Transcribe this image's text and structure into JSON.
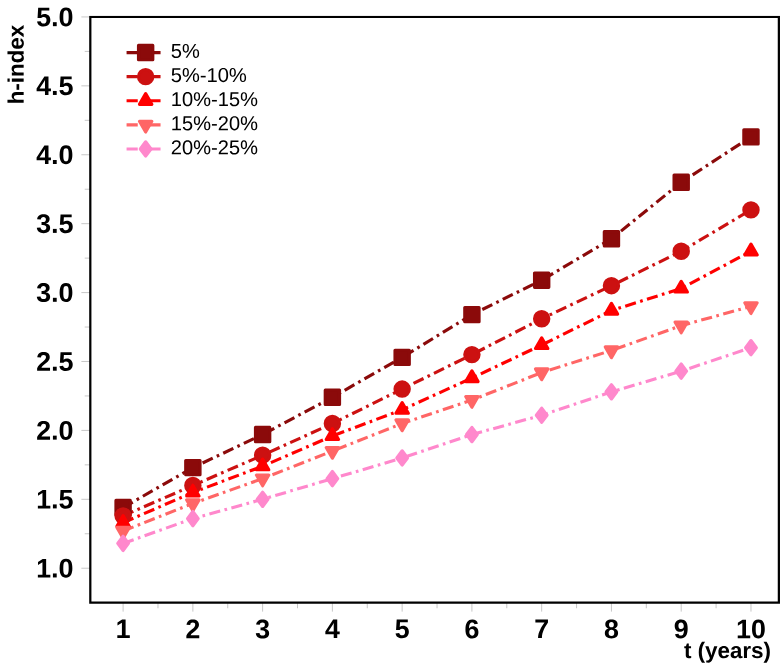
{
  "chart_data": {
    "type": "line",
    "xlabel": "t (years)",
    "ylabel": "h-index",
    "x": [
      1,
      2,
      3,
      4,
      5,
      6,
      7,
      8,
      9,
      10
    ],
    "xlim": [
      0.53,
      10.4
    ],
    "xticks": [
      1,
      2,
      3,
      4,
      5,
      6,
      7,
      8,
      9,
      10
    ],
    "ylim": [
      0.75,
      5.0
    ],
    "yticks": [
      {
        "value": 1.0,
        "label": "1.0"
      },
      {
        "value": 1.5,
        "label": "1.5"
      },
      {
        "value": 2.0,
        "label": "2.0"
      },
      {
        "value": 2.5,
        "label": "2.5"
      },
      {
        "value": 3.0,
        "label": "3.0"
      },
      {
        "value": 3.5,
        "label": "3.5"
      },
      {
        "value": 4.0,
        "label": "4.0"
      },
      {
        "value": 4.5,
        "label": "4.5"
      },
      {
        "value": 5.0,
        "label": "5.0"
      }
    ],
    "grid": false,
    "legend": "top left",
    "line_style": "dashed",
    "series": [
      {
        "name": "5%",
        "color": "#8b0a0a",
        "marker": "square",
        "values": [
          1.44,
          1.73,
          1.97,
          2.24,
          2.53,
          2.84,
          3.09,
          3.39,
          3.8,
          4.13
        ]
      },
      {
        "name": "5%-10%",
        "color": "#cc1111",
        "marker": "circle",
        "values": [
          1.38,
          1.6,
          1.82,
          2.05,
          2.3,
          2.55,
          2.81,
          3.05,
          3.3,
          3.6
        ]
      },
      {
        "name": "10%-15%",
        "color": "#ff0000",
        "marker": "triangle",
        "values": [
          1.33,
          1.55,
          1.74,
          1.96,
          2.15,
          2.38,
          2.62,
          2.87,
          3.03,
          3.3
        ]
      },
      {
        "name": "15%-20%",
        "color": "#ff6666",
        "marker": "triangle down",
        "values": [
          1.27,
          1.47,
          1.65,
          1.85,
          2.05,
          2.22,
          2.42,
          2.58,
          2.76,
          2.9
        ]
      },
      {
        "name": "20%-25%",
        "color": "#ff88cc",
        "marker": "diamond",
        "values": [
          1.18,
          1.36,
          1.5,
          1.65,
          1.8,
          1.97,
          2.11,
          2.28,
          2.43,
          2.6
        ]
      }
    ]
  }
}
